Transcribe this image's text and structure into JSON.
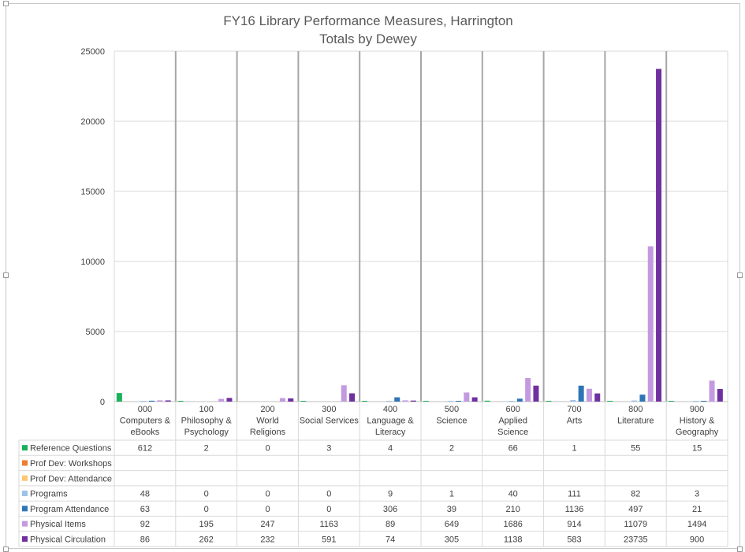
{
  "chart_data": {
    "type": "bar",
    "title": "FY16 Library Performance Measures, Harrington",
    "subtitle": "Totals by Dewey",
    "ylim": [
      0,
      25000
    ],
    "yticks": [
      0,
      5000,
      10000,
      15000,
      20000,
      25000
    ],
    "categories": [
      [
        "000",
        "Computers &",
        "eBooks"
      ],
      [
        "100",
        "Philosophy &",
        "Psychology"
      ],
      [
        "200",
        "World",
        "Religions"
      ],
      [
        "300",
        "Social Services"
      ],
      [
        "400",
        "Language &",
        "Literacy"
      ],
      [
        "500",
        "Science"
      ],
      [
        "600",
        "Applied",
        "Science"
      ],
      [
        "700",
        "Arts"
      ],
      [
        "800",
        "Literature"
      ],
      [
        "900",
        "History &",
        "Geography"
      ]
    ],
    "series": [
      {
        "name": "Reference Questions",
        "color": "#1bb15b",
        "values": [
          612,
          2,
          0,
          3,
          4,
          2,
          66,
          1,
          55,
          15
        ]
      },
      {
        "name": "Prof Dev: Workshops",
        "color": "#ed7d31",
        "values": [
          null,
          null,
          null,
          null,
          null,
          null,
          null,
          null,
          null,
          null
        ]
      },
      {
        "name": "Prof Dev: Attendance",
        "color": "#ffc773",
        "values": [
          null,
          null,
          null,
          null,
          null,
          null,
          null,
          null,
          null,
          null
        ]
      },
      {
        "name": "Programs",
        "color": "#9dc3e6",
        "values": [
          48,
          0,
          0,
          0,
          9,
          1,
          40,
          111,
          82,
          3
        ]
      },
      {
        "name": "Program Attendance",
        "color": "#2e75b6",
        "values": [
          63,
          0,
          0,
          0,
          306,
          39,
          210,
          1136,
          497,
          21
        ]
      },
      {
        "name": "Physical Items",
        "color": "#c39ae0",
        "values": [
          92,
          195,
          247,
          1163,
          89,
          649,
          1686,
          914,
          11079,
          1494
        ]
      },
      {
        "name": "Physical Circulation",
        "color": "#7030a0",
        "values": [
          86,
          262,
          232,
          591,
          74,
          305,
          1138,
          583,
          23735,
          900
        ]
      }
    ],
    "grid": true,
    "legend": "data-table"
  }
}
